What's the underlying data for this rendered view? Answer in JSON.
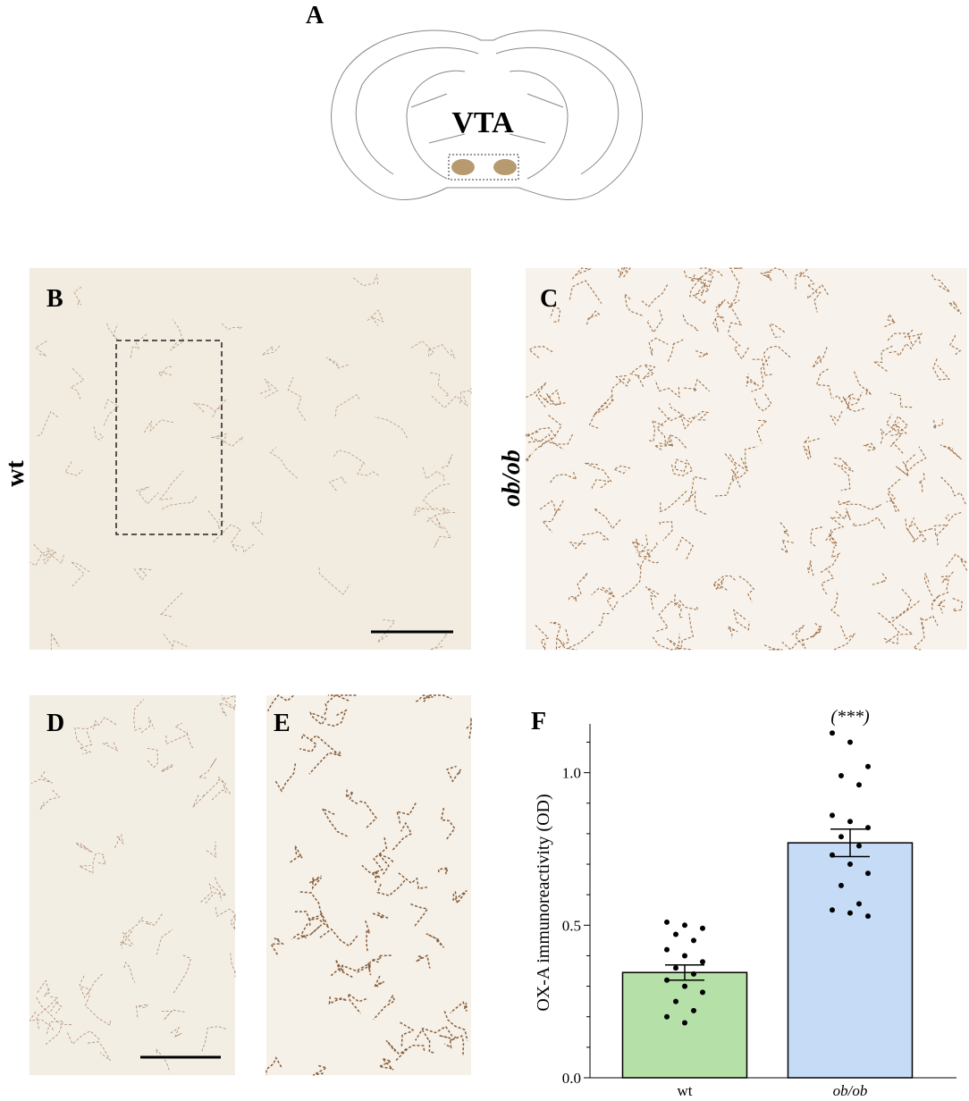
{
  "figure": {
    "panel_labels": [
      "A",
      "B",
      "C",
      "D",
      "E",
      "F"
    ],
    "diagram_label": "VTA",
    "row_labels": [
      "wt",
      "ob/ob"
    ]
  },
  "chart_data": {
    "type": "bar",
    "y_label": "OX-A immunoreactivity (OD)",
    "categories": [
      "wt",
      "ob/ob"
    ],
    "values": [
      0.345,
      0.77
    ],
    "errors": [
      0.025,
      0.045
    ],
    "colors": [
      "#b5e0a8",
      "#c6dcf6"
    ],
    "points": [
      [
        0.51,
        0.5,
        0.49,
        0.47,
        0.45,
        0.42,
        0.4,
        0.38,
        0.36,
        0.34,
        0.32,
        0.3,
        0.28,
        0.25,
        0.22,
        0.2,
        0.18
      ],
      [
        1.13,
        1.1,
        1.02,
        0.99,
        0.96,
        0.86,
        0.84,
        0.82,
        0.79,
        0.76,
        0.73,
        0.7,
        0.67,
        0.63,
        0.57,
        0.55,
        0.54,
        0.53
      ]
    ],
    "annotation": "(***)",
    "ylim": [
      0,
      1.16
    ],
    "yticks": [
      {
        "value": 0,
        "label": "0.0"
      },
      0.5,
      {
        "value": 1,
        "label": "1.0"
      }
    ],
    "minor_yticks": [
      0.1,
      0.2,
      0.3,
      0.4,
      0.6,
      0.7,
      0.8,
      0.9,
      1.1
    ]
  }
}
